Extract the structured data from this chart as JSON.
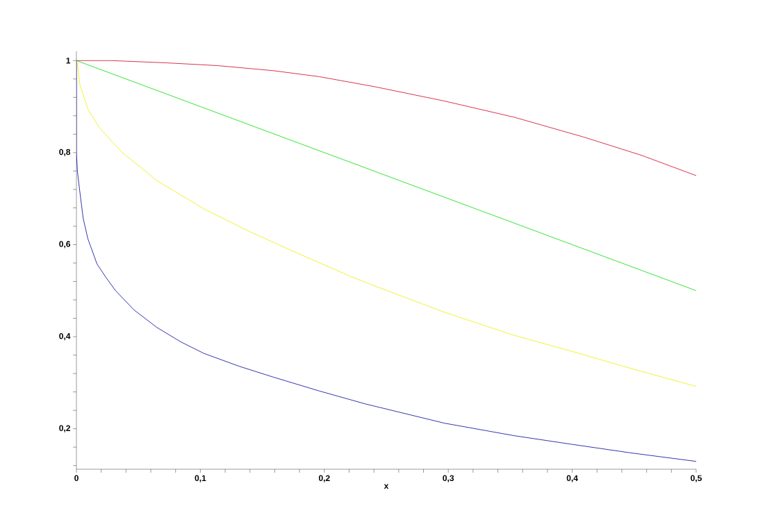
{
  "chart_data": {
    "type": "line",
    "xlabel": "x",
    "xlim": [
      0,
      0.5
    ],
    "ylim": [
      0.112,
      1.02
    ],
    "xticks": [
      0,
      {
        "value": 0.02,
        "label": null
      },
      {
        "value": 0.04,
        "label": null
      },
      {
        "value": 0.06,
        "label": null
      },
      {
        "value": 0.08,
        "label": null
      },
      {
        "value": 0.1,
        "label": "0,1"
      },
      {
        "value": 0.12,
        "label": null
      },
      {
        "value": 0.14,
        "label": null
      },
      {
        "value": 0.16,
        "label": null
      },
      {
        "value": 0.18,
        "label": null
      },
      {
        "value": 0.2,
        "label": "0,2"
      },
      {
        "value": 0.22,
        "label": null
      },
      {
        "value": 0.24,
        "label": null
      },
      {
        "value": 0.26,
        "label": null
      },
      {
        "value": 0.28,
        "label": null
      },
      {
        "value": 0.3,
        "label": "0,3"
      },
      {
        "value": 0.32,
        "label": null
      },
      {
        "value": 0.34,
        "label": null
      },
      {
        "value": 0.36,
        "label": null
      },
      {
        "value": 0.38,
        "label": null
      },
      {
        "value": 0.4,
        "label": "0,4"
      },
      {
        "value": 0.42,
        "label": null
      },
      {
        "value": 0.44,
        "label": null
      },
      {
        "value": 0.46,
        "label": null
      },
      {
        "value": 0.48,
        "label": null
      },
      {
        "value": 0.5,
        "label": "0,5"
      }
    ],
    "yticks": [
      {
        "value": 0.12,
        "label": null
      },
      {
        "value": 0.16,
        "label": null
      },
      {
        "value": 0.2,
        "label": "0,2"
      },
      {
        "value": 0.24,
        "label": null
      },
      {
        "value": 0.28,
        "label": null
      },
      {
        "value": 0.32,
        "label": null
      },
      {
        "value": 0.36,
        "label": null
      },
      {
        "value": 0.4,
        "label": "0,4"
      },
      {
        "value": 0.44,
        "label": null
      },
      {
        "value": 0.48,
        "label": null
      },
      {
        "value": 0.52,
        "label": null
      },
      {
        "value": 0.56,
        "label": null
      },
      {
        "value": 0.6,
        "label": "0,6"
      },
      {
        "value": 0.64,
        "label": null
      },
      {
        "value": 0.68,
        "label": null
      },
      {
        "value": 0.72,
        "label": null
      },
      {
        "value": 0.76,
        "label": null
      },
      {
        "value": 0.8,
        "label": "0,8"
      },
      {
        "value": 0.84,
        "label": null
      },
      {
        "value": 0.88,
        "label": null
      },
      {
        "value": 0.92,
        "label": null
      },
      {
        "value": 0.96,
        "label": null
      },
      {
        "value": 1,
        "label": "1"
      }
    ],
    "grid": false,
    "marker": "none",
    "line_style": "solid",
    "series": [
      {
        "color": "#cc0022",
        "x": [
          0,
          0.028,
          0.073,
          0.114,
          0.159,
          0.196,
          0.241,
          0.297,
          0.353,
          0.409,
          0.456,
          0.5
        ],
        "values": [
          1,
          1,
          0.995,
          0.989,
          0.978,
          0.965,
          0.943,
          0.912,
          0.877,
          0.834,
          0.794,
          0.75
        ]
      },
      {
        "color": "#00dd00",
        "x": [
          0,
          0.1,
          0.2,
          0.3,
          0.4,
          0.5
        ],
        "values": [
          1,
          0.9,
          0.8,
          0.7,
          0.6,
          0.5
        ]
      },
      {
        "color": "#eeee00",
        "x": [
          0,
          0.0011,
          0.0026,
          0.0092,
          0.0185,
          0.037,
          0.065,
          0.1026,
          0.14,
          0.177,
          0.222,
          0.241,
          0.297,
          0.353,
          0.4,
          0.446,
          0.5
        ],
        "values": [
          1,
          0.99,
          0.95,
          0.895,
          0.854,
          0.8,
          0.739,
          0.678,
          0.628,
          0.583,
          0.53,
          0.51,
          0.453,
          0.403,
          0.368,
          0.332,
          0.292
        ]
      },
      {
        "color": "#000099",
        "x": [
          0,
          0,
          0.0008,
          0.0026,
          0.0054,
          0.0092,
          0.0166,
          0.024,
          0.0316,
          0.0465,
          0.065,
          0.084,
          0.1026,
          0.131,
          0.159,
          0.196,
          0.233,
          0.297,
          0.353,
          0.4,
          0.446,
          0.5
        ],
        "values": [
          1,
          0.8,
          0.759,
          0.718,
          0.658,
          0.613,
          0.558,
          0.528,
          0.5,
          0.458,
          0.42,
          0.389,
          0.364,
          0.336,
          0.312,
          0.282,
          0.254,
          0.212,
          0.185,
          0.166,
          0.148,
          0.129
        ]
      }
    ]
  }
}
